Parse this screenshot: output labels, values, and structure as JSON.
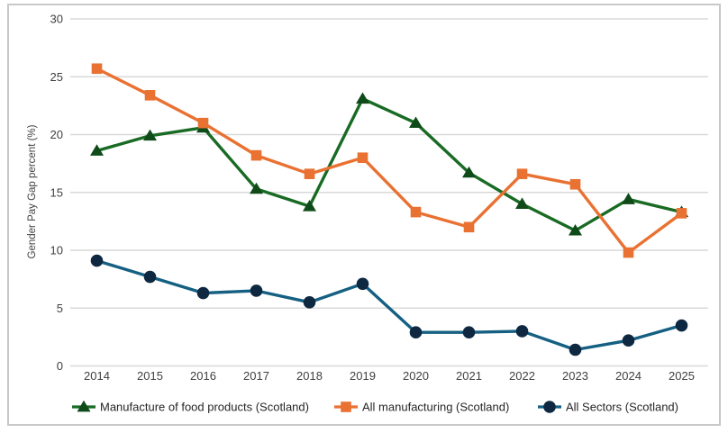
{
  "chart_data": {
    "type": "line",
    "title": "",
    "xlabel": "",
    "ylabel": "Gender Pay Gap percent (%)",
    "ylim": [
      0,
      30
    ],
    "ytick_step": 5,
    "yticks": [
      0,
      5,
      10,
      15,
      20,
      25,
      30
    ],
    "grid": true,
    "legend_position": "bottom",
    "categories": [
      "2014",
      "2015",
      "2016",
      "2017",
      "2018",
      "2019",
      "2020",
      "2021",
      "2022",
      "2023",
      "2024",
      "2025"
    ],
    "series": [
      {
        "name": "Manufacture of food products (Scotland)",
        "marker": "triangle",
        "line_color": "#196B24",
        "marker_color": "#0F4A19",
        "values": [
          18.6,
          19.9,
          20.6,
          15.3,
          13.8,
          23.1,
          21.0,
          16.7,
          14.0,
          11.7,
          14.4,
          13.3
        ]
      },
      {
        "name": "All manufacturing (Scotland)",
        "marker": "square",
        "line_color": "#E97132",
        "marker_color": "#E97132",
        "values": [
          25.7,
          23.4,
          21.0,
          18.2,
          16.6,
          18.0,
          13.3,
          12.0,
          16.6,
          15.7,
          9.8,
          13.2
        ]
      },
      {
        "name": "All Sectors (Scotland)",
        "marker": "circle",
        "line_color": "#156082",
        "marker_color": "#0E2841",
        "values": [
          9.1,
          7.7,
          6.3,
          6.5,
          5.5,
          7.1,
          2.9,
          2.9,
          3.0,
          1.4,
          2.2,
          3.5
        ]
      }
    ],
    "colors": {
      "gridline": "#D9D9D9",
      "axis_line": "#D9D9D9",
      "border": "#C8C8C8",
      "background": "#FFFFFF"
    }
  }
}
